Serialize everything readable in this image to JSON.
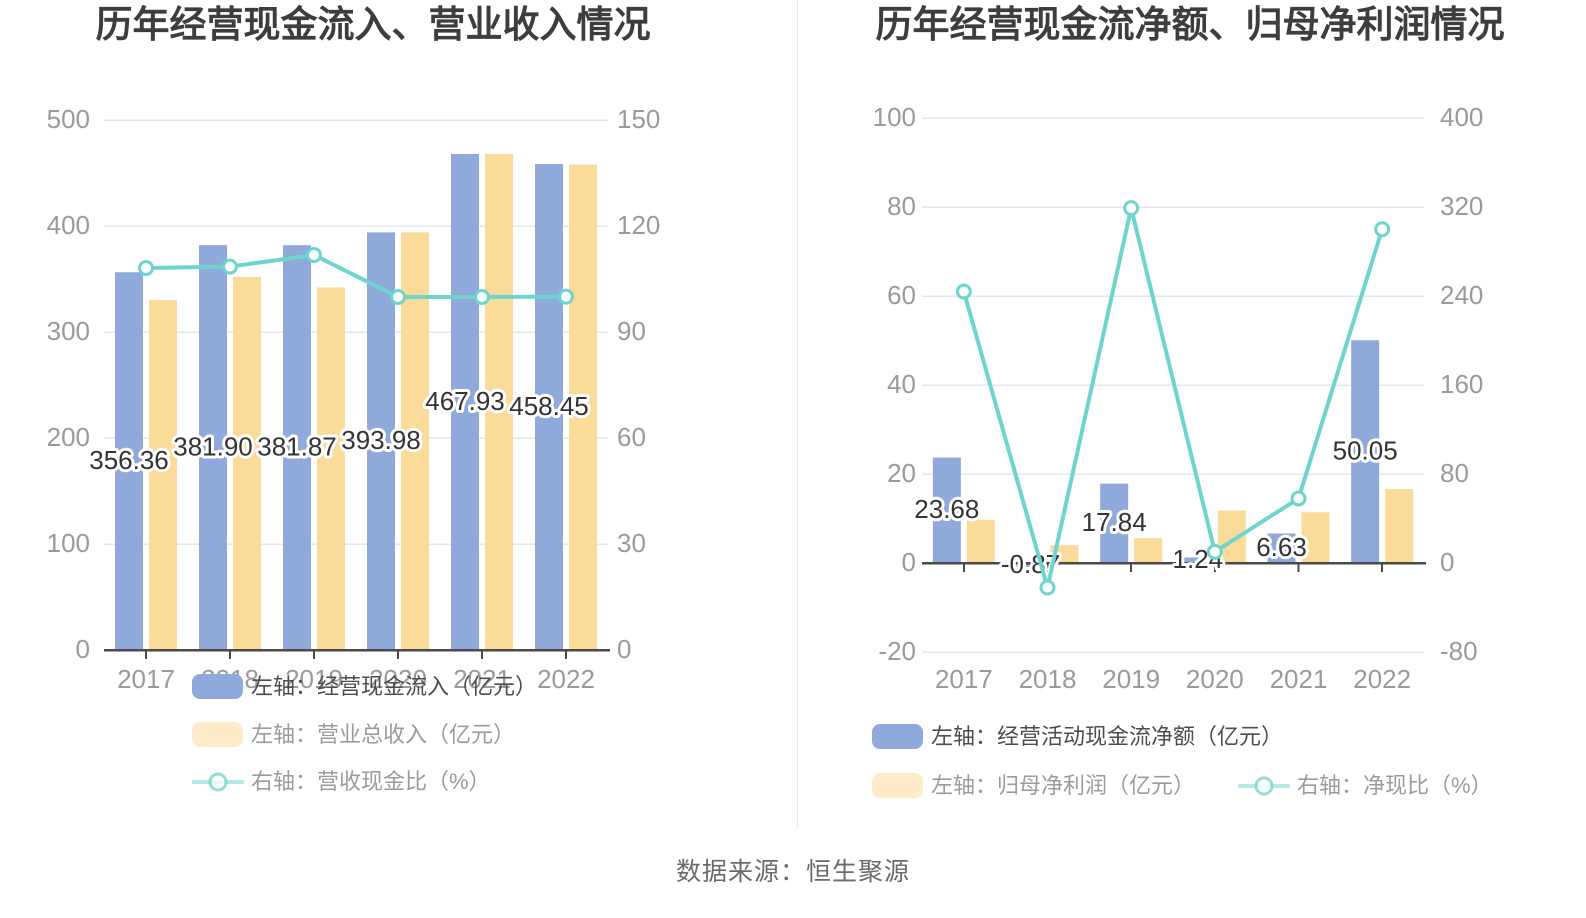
{
  "page": {
    "source_note": "数据来源：恒生聚源",
    "background": "#ffffff"
  },
  "style": {
    "bar_blue": "#8EA9DA",
    "bar_yellow": "#FBDB9A",
    "legend_yellow": "#FDEBC9",
    "line_teal": "#6FD4CD",
    "gridline": "#E3E7F3",
    "axis_line": "#4A4A4A",
    "axis_label": "#9A9A9A",
    "title_color": "#3D3D3D",
    "value_label": "#333333",
    "legend_text_primary": "#4D4D4D",
    "legend_text_secondary": "#9B9B9B",
    "source_color": "#6B6B6B"
  },
  "chart_data": [
    {
      "type": "bar",
      "title": "历年经营现金流入、营业收入情况",
      "categories": [
        "2017",
        "2018",
        "2019",
        "2020",
        "2021",
        "2022"
      ],
      "series": [
        {
          "name": "左轴：经营现金流入（亿元）",
          "type": "bar",
          "axis": "left",
          "color": "#8EA9DA",
          "values": [
            356.36,
            381.9,
            381.87,
            393.98,
            467.93,
            458.45
          ],
          "labels": [
            "356.36",
            "381.90",
            "381.87",
            "393.98",
            "467.93",
            "458.45"
          ]
        },
        {
          "name": "左轴：营业总收入（亿元）",
          "type": "bar",
          "axis": "left",
          "color": "#FBDB9A",
          "legend_color": "#FDEBC9",
          "values": [
            330,
            352,
            342,
            394,
            468,
            458
          ]
        },
        {
          "name": "右轴：营收现金比（%）",
          "type": "line",
          "axis": "right",
          "color": "#6FD4CD",
          "values": [
            108.1,
            108.5,
            111.8,
            99.9,
            99.9,
            100.0
          ]
        }
      ],
      "left_axis": {
        "min": 0,
        "max": 500,
        "ticks": [
          500,
          400,
          300,
          200,
          100,
          0
        ]
      },
      "right_axis": {
        "min": 0,
        "max": 150,
        "ticks": [
          150,
          120,
          90,
          60,
          30,
          0
        ]
      },
      "grid": true,
      "legend_position": "bottom"
    },
    {
      "type": "bar",
      "title": "历年经营现金流净额、归母净利润情况",
      "categories": [
        "2017",
        "2018",
        "2019",
        "2020",
        "2021",
        "2022"
      ],
      "series": [
        {
          "name": "左轴：经营活动现金流净额（亿元）",
          "type": "bar",
          "axis": "left",
          "color": "#8EA9DA",
          "values": [
            23.68,
            -0.87,
            17.84,
            1.24,
            6.63,
            50.05
          ],
          "labels": [
            "23.68",
            "-0.87",
            "17.84",
            "1.24",
            "6.63",
            "50.05"
          ]
        },
        {
          "name": "左轴：归母净利润（亿元）",
          "type": "bar",
          "axis": "left",
          "color": "#FBDB9A",
          "legend_color": "#FDEBC9",
          "values": [
            9.7,
            4.0,
            5.6,
            11.8,
            11.4,
            16.6
          ]
        },
        {
          "name": "右轴：净现比（%）",
          "type": "line",
          "axis": "right",
          "color": "#6FD4CD",
          "values": [
            244,
            -22,
            319,
            10,
            58,
            300
          ]
        }
      ],
      "left_axis": {
        "min": -20,
        "max": 100,
        "ticks": [
          100,
          80,
          60,
          40,
          20,
          0,
          -20
        ]
      },
      "right_axis": {
        "min": -80,
        "max": 400,
        "ticks": [
          400,
          320,
          240,
          160,
          80,
          0,
          -80
        ]
      },
      "grid": true,
      "legend_position": "bottom"
    }
  ]
}
